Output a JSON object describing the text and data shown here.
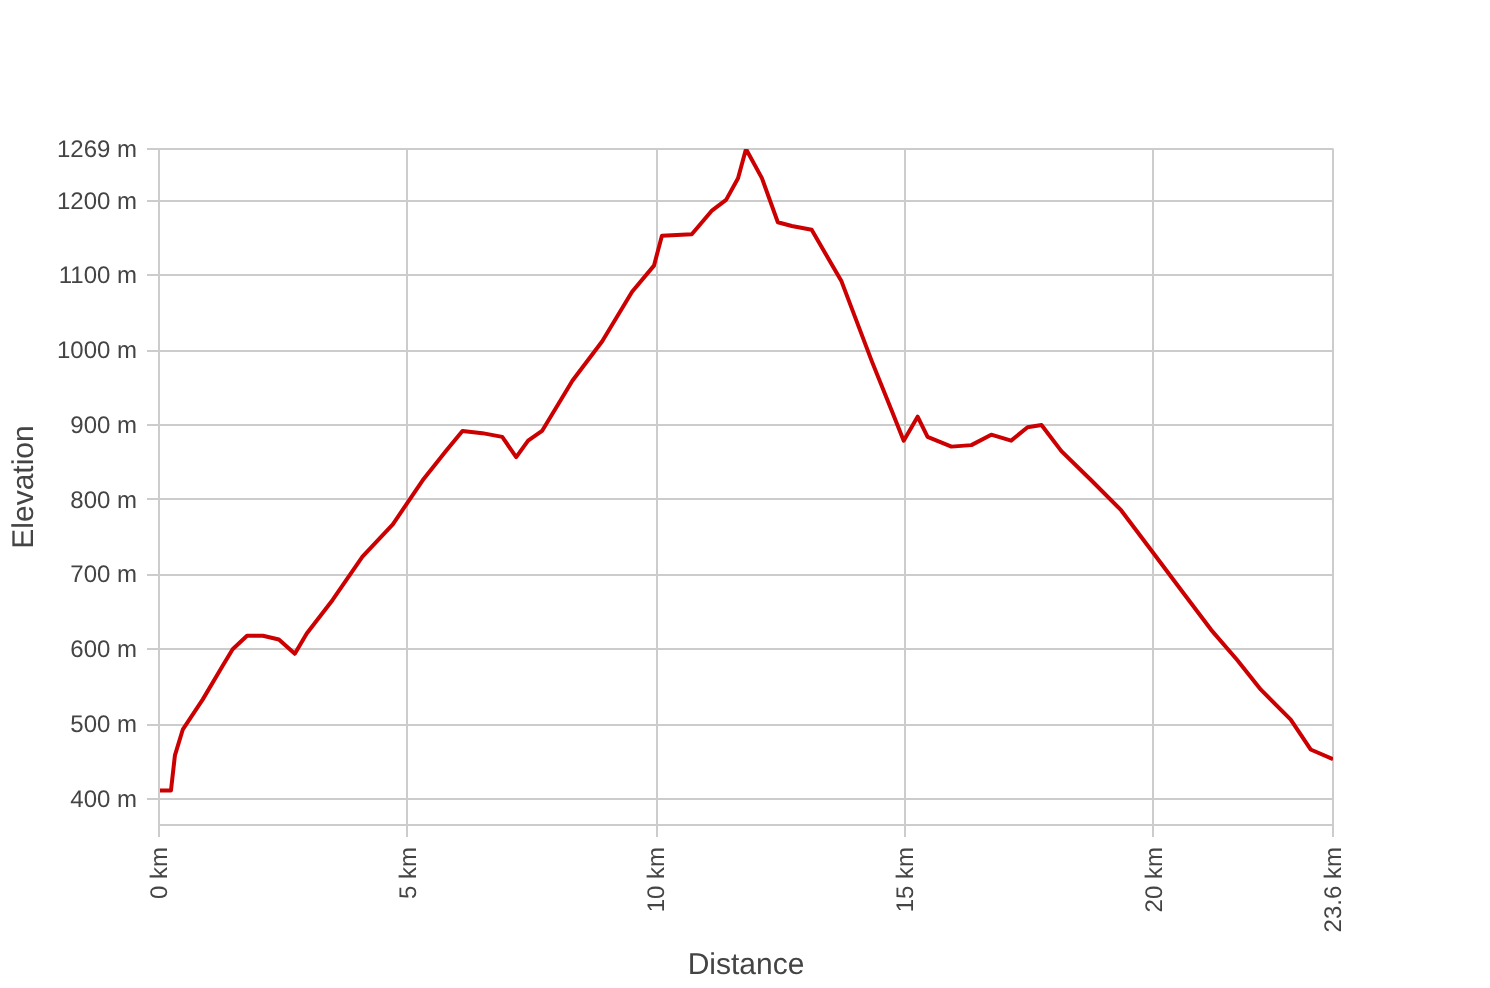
{
  "chart_data": {
    "type": "line",
    "xlabel": "Distance",
    "ylabel": "Elevation",
    "x": [
      0,
      0.24,
      0.32,
      0.48,
      0.88,
      1.28,
      1.48,
      1.77,
      2.09,
      2.41,
      2.73,
      2.97,
      3.49,
      4.09,
      4.7,
      5.3,
      5.78,
      6.1,
      6.5,
      6.9,
      7.18,
      7.42,
      7.7,
      8.31,
      8.91,
      9.51,
      9.95,
      10.11,
      10.71,
      11.12,
      11.4,
      11.64,
      11.8,
      12.12,
      12.44,
      12.72,
      13.12,
      13.72,
      14.33,
      14.73,
      14.97,
      15.25,
      15.45,
      15.93,
      16.33,
      16.73,
      17.13,
      17.46,
      17.74,
      18.14,
      18.74,
      19.34,
      19.95,
      20.55,
      21.15,
      21.67,
      22.15,
      22.75,
      23.15,
      23.6
    ],
    "series": [
      {
        "color": "#cc0000",
        "values": [
          411,
          411,
          458,
          493,
          533,
          578,
          600,
          618,
          618,
          613,
          594,
          621,
          666,
          724,
          767,
          826,
          866,
          892,
          889,
          884,
          857,
          879,
          892,
          959,
          1012,
          1078,
          1113,
          1153,
          1155,
          1187,
          1201,
          1230,
          1269,
          1230,
          1171,
          1166,
          1161,
          1092,
          985,
          919,
          879,
          911,
          884,
          871,
          873,
          887,
          879,
          897,
          900,
          865,
          826,
          786,
          732,
          679,
          626,
          586,
          546,
          506,
          466,
          453
        ]
      }
    ],
    "xlim": [
      0,
      23.6
    ],
    "xticks": [
      {
        "value": 0,
        "label": "0 km"
      },
      {
        "value": 5,
        "label": "5 km"
      },
      {
        "value": 10,
        "label": "10 km"
      },
      {
        "value": 15,
        "label": "15 km"
      },
      {
        "value": 20,
        "label": "20 km"
      },
      {
        "value": 23.6,
        "label": "23.6 km"
      }
    ],
    "ylim": [
      365,
      1269
    ],
    "yticks": [
      {
        "value": 400,
        "label": "400 m"
      },
      {
        "value": 500,
        "label": "500 m"
      },
      {
        "value": 600,
        "label": "600 m"
      },
      {
        "value": 700,
        "label": "700 m"
      },
      {
        "value": 800,
        "label": "800 m"
      },
      {
        "value": 900,
        "label": "900 m"
      },
      {
        "value": 1000,
        "label": "1000 m"
      },
      {
        "value": 1100,
        "label": "1100 m"
      },
      {
        "value": 1200,
        "label": "1200 m"
      },
      {
        "value": 1269,
        "label": "1269 m"
      }
    ],
    "grid": true,
    "line_style": "solid"
  }
}
